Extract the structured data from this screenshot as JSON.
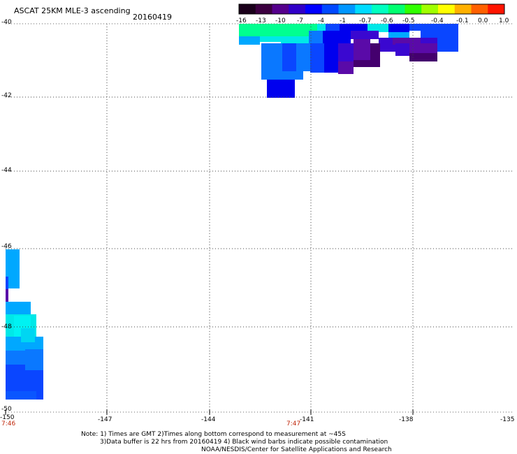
{
  "header": {
    "title": "ASCAT 25KM MLE-3 ascending",
    "date": "20160419"
  },
  "map": {
    "lat_labels": [
      "-40",
      "-42",
      "-44",
      "-46",
      "-48",
      "-50"
    ],
    "lon_labels": [
      "-150",
      "-147",
      "-144",
      "-141",
      "-138",
      "-135"
    ],
    "pass_times": [
      "7:46",
      "7:47"
    ],
    "grid": "dotted"
  },
  "colorbar": {
    "labels": [
      "-16",
      "-13",
      "-10",
      "-7",
      "-4",
      "-1",
      "-0.7",
      "-0.6",
      "-0.5",
      "-0.4",
      "-0.1",
      "0.0",
      "1.0"
    ],
    "colors": [
      "#1a001a",
      "#3c0040",
      "#55008c",
      "#3000c8",
      "#0000ff",
      "#0048ff",
      "#0096ff",
      "#00dcff",
      "#00ffc0",
      "#00ff70",
      "#30ff00",
      "#a0ff00",
      "#ffff00",
      "#ffb000",
      "#ff6000",
      "#ff1400"
    ]
  },
  "footer": {
    "note_line1": "Note: 1) Times are GMT 2)Times along bottom correspond to measurement at ~45S",
    "note_line2": "3)Data buffer is 22 hrs from 20160419 4) Black wind barbs indicate possible contamination",
    "note_line3": "NOAA/NESDIS/Center for Satellite Applications and Research"
  }
}
